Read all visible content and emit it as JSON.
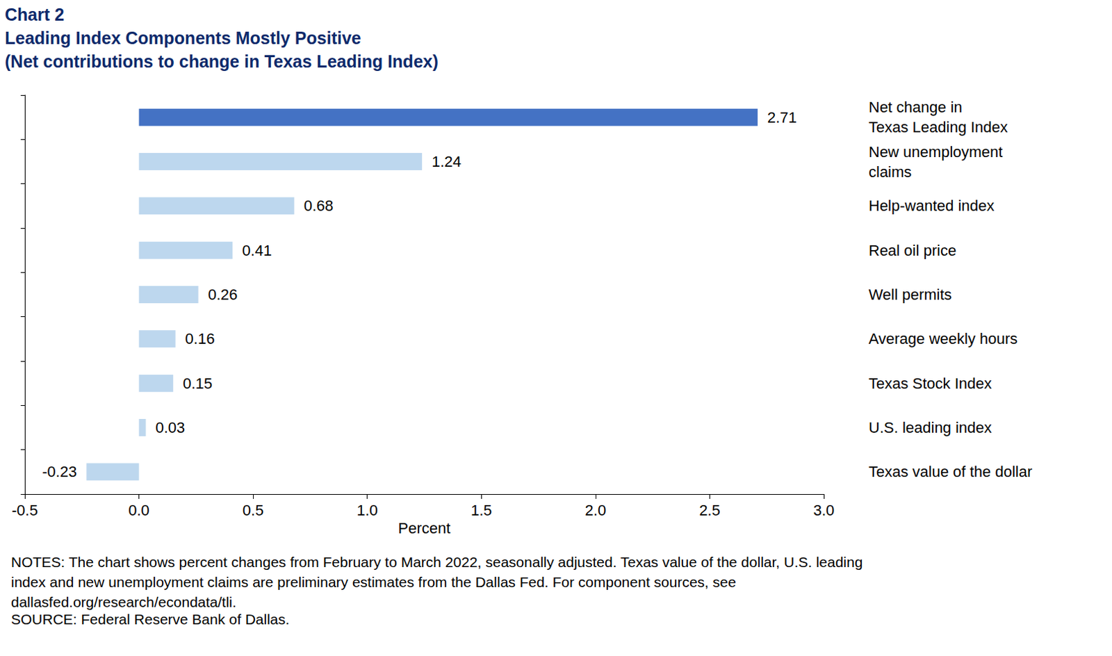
{
  "chart_data": {
    "type": "bar",
    "orientation": "horizontal",
    "chart_label": "Chart 2",
    "title": "Leading Index Components Mostly Positive",
    "subtitle": "(Net contributions to change in Texas Leading Index)",
    "categories": [
      "Net change in\nTexas Leading Index",
      "New unemployment\nclaims",
      "Help-wanted index",
      "Real oil price",
      "Well permits",
      "Average weekly hours",
      "Texas Stock Index",
      "U.S. leading index",
      "Texas value of the dollar"
    ],
    "values": [
      2.71,
      1.24,
      0.68,
      0.41,
      0.26,
      0.16,
      0.15,
      0.03,
      -0.23
    ],
    "colors": [
      "#4472c4",
      "#bdd7ee",
      "#bdd7ee",
      "#bdd7ee",
      "#bdd7ee",
      "#bdd7ee",
      "#bdd7ee",
      "#bdd7ee",
      "#bdd7ee"
    ],
    "xlabel": "Percent",
    "xlim": [
      -0.5,
      3.0
    ],
    "xticks": [
      -0.5,
      {
        "value": 0,
        "label": "0.0"
      },
      0.5,
      {
        "value": 1,
        "label": "1.0"
      },
      1.5,
      {
        "value": 2,
        "label": "2.0"
      },
      2.5,
      {
        "value": 3,
        "label": "3.0"
      }
    ],
    "grid": false,
    "data_labels": true,
    "notes": "NOTES: The chart shows percent changes from February to March 2022, seasonally adjusted. Texas value of the dollar, U.S. leading\nindex and new unemployment claims are preliminary estimates from the Dallas Fed. For component sources, see\ndallasfed.org/research/econdata/tli.",
    "source": "SOURCE: Federal Reserve Bank of Dallas."
  }
}
